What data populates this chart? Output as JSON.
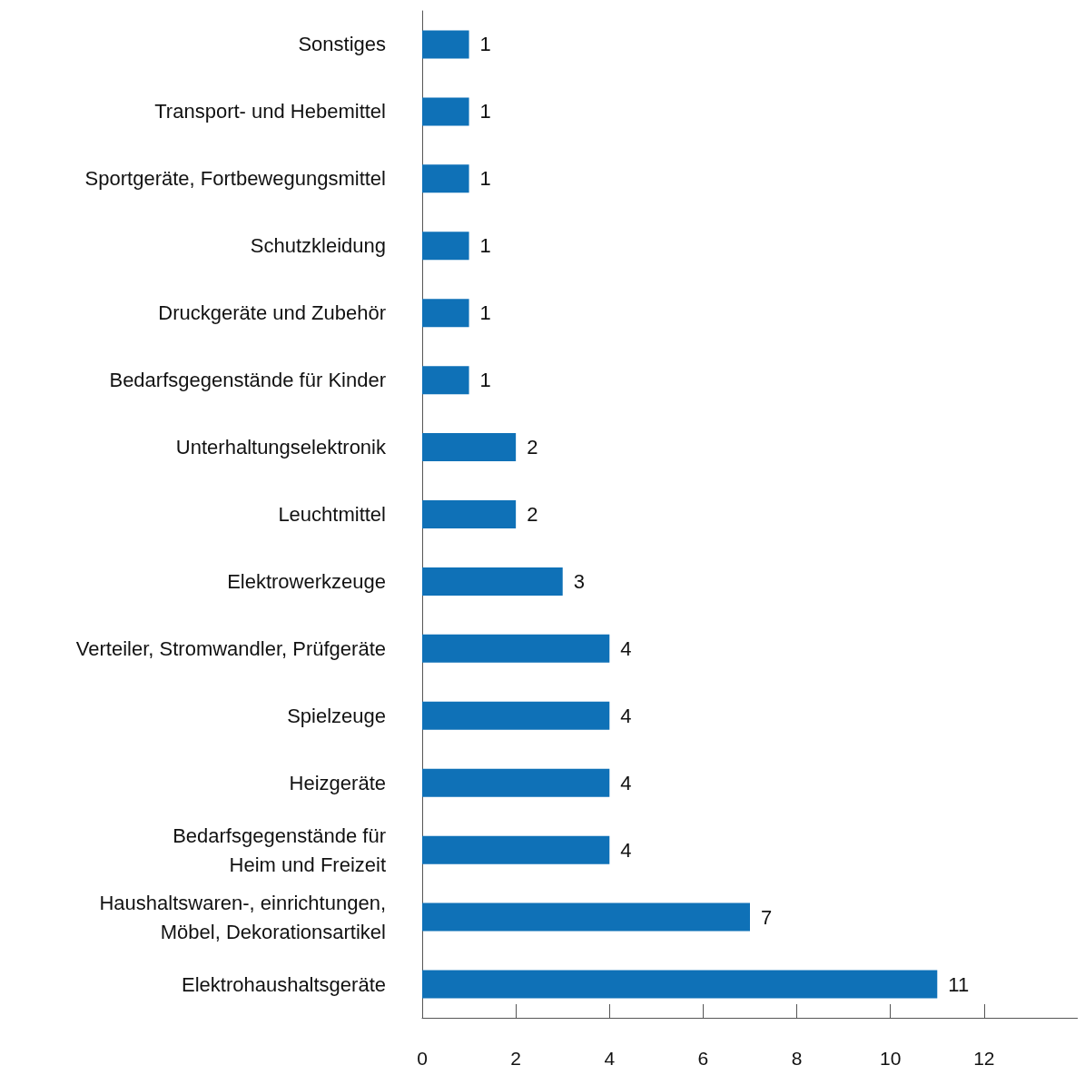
{
  "chart_data": {
    "type": "bar",
    "orientation": "horizontal",
    "categories": [
      "Sonstiges",
      "Transport- und Hebemittel",
      "Sportgeräte, Fortbewegungsmittel",
      "Schutzkleidung",
      "Druckgeräte und Zubehör",
      "Bedarfsgegenstände für Kinder",
      "Unterhaltungselektronik",
      "Leuchtmittel",
      "Elektrowerkzeuge",
      "Verteiler, Stromwandler, Prüfgeräte",
      "Spielzeuge",
      "Heizgeräte",
      "Bedarfsgegenstände für\nHeim und Freizeit",
      "Haushaltswaren-, einrichtungen,\nMöbel, Dekorationsartikel",
      "Elektrohaushaltsgeräte"
    ],
    "values": [
      1,
      1,
      1,
      1,
      1,
      1,
      2,
      2,
      3,
      4,
      4,
      4,
      4,
      7,
      11
    ],
    "color": "#0f71b7",
    "xlim": [
      0,
      14
    ],
    "xticks": [
      0,
      2,
      4,
      6,
      8,
      10,
      12
    ],
    "data_labels": true,
    "grid": false
  }
}
